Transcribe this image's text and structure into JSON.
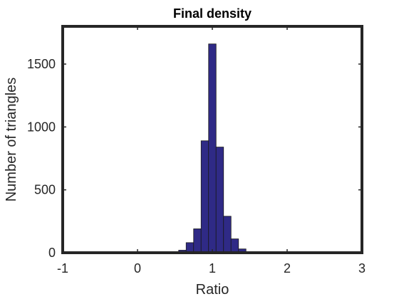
{
  "chart_data": {
    "type": "bar",
    "subtype": "histogram",
    "title": "Final density",
    "xlabel": "Ratio",
    "ylabel": "Number of triangles",
    "xlim": [
      -1,
      3
    ],
    "ylim": [
      0,
      1800
    ],
    "xticks": [
      -1,
      0,
      1,
      2,
      3
    ],
    "xtick_labels": [
      "-1",
      "0",
      "1",
      "2",
      "3"
    ],
    "yticks": [
      0,
      500,
      1000,
      1500
    ],
    "ytick_labels": [
      "0",
      "500",
      "1000",
      "1500"
    ],
    "grid": false,
    "legend": "none",
    "bar_color": "#2f2a86",
    "edge_color": "#1a1a1a",
    "frame_color": "#262626",
    "bins": [
      {
        "x0": 0.55,
        "x1": 0.65,
        "value": 20
      },
      {
        "x0": 0.65,
        "x1": 0.75,
        "value": 80
      },
      {
        "x0": 0.75,
        "x1": 0.85,
        "value": 190
      },
      {
        "x0": 0.85,
        "x1": 0.95,
        "value": 890
      },
      {
        "x0": 0.95,
        "x1": 1.05,
        "value": 1660
      },
      {
        "x0": 1.05,
        "x1": 1.15,
        "value": 840
      },
      {
        "x0": 1.15,
        "x1": 1.25,
        "value": 290
      },
      {
        "x0": 1.25,
        "x1": 1.35,
        "value": 110
      },
      {
        "x0": 1.35,
        "x1": 1.45,
        "value": 30
      },
      {
        "x0": 1.45,
        "x1": 1.55,
        "value": 5
      }
    ]
  }
}
